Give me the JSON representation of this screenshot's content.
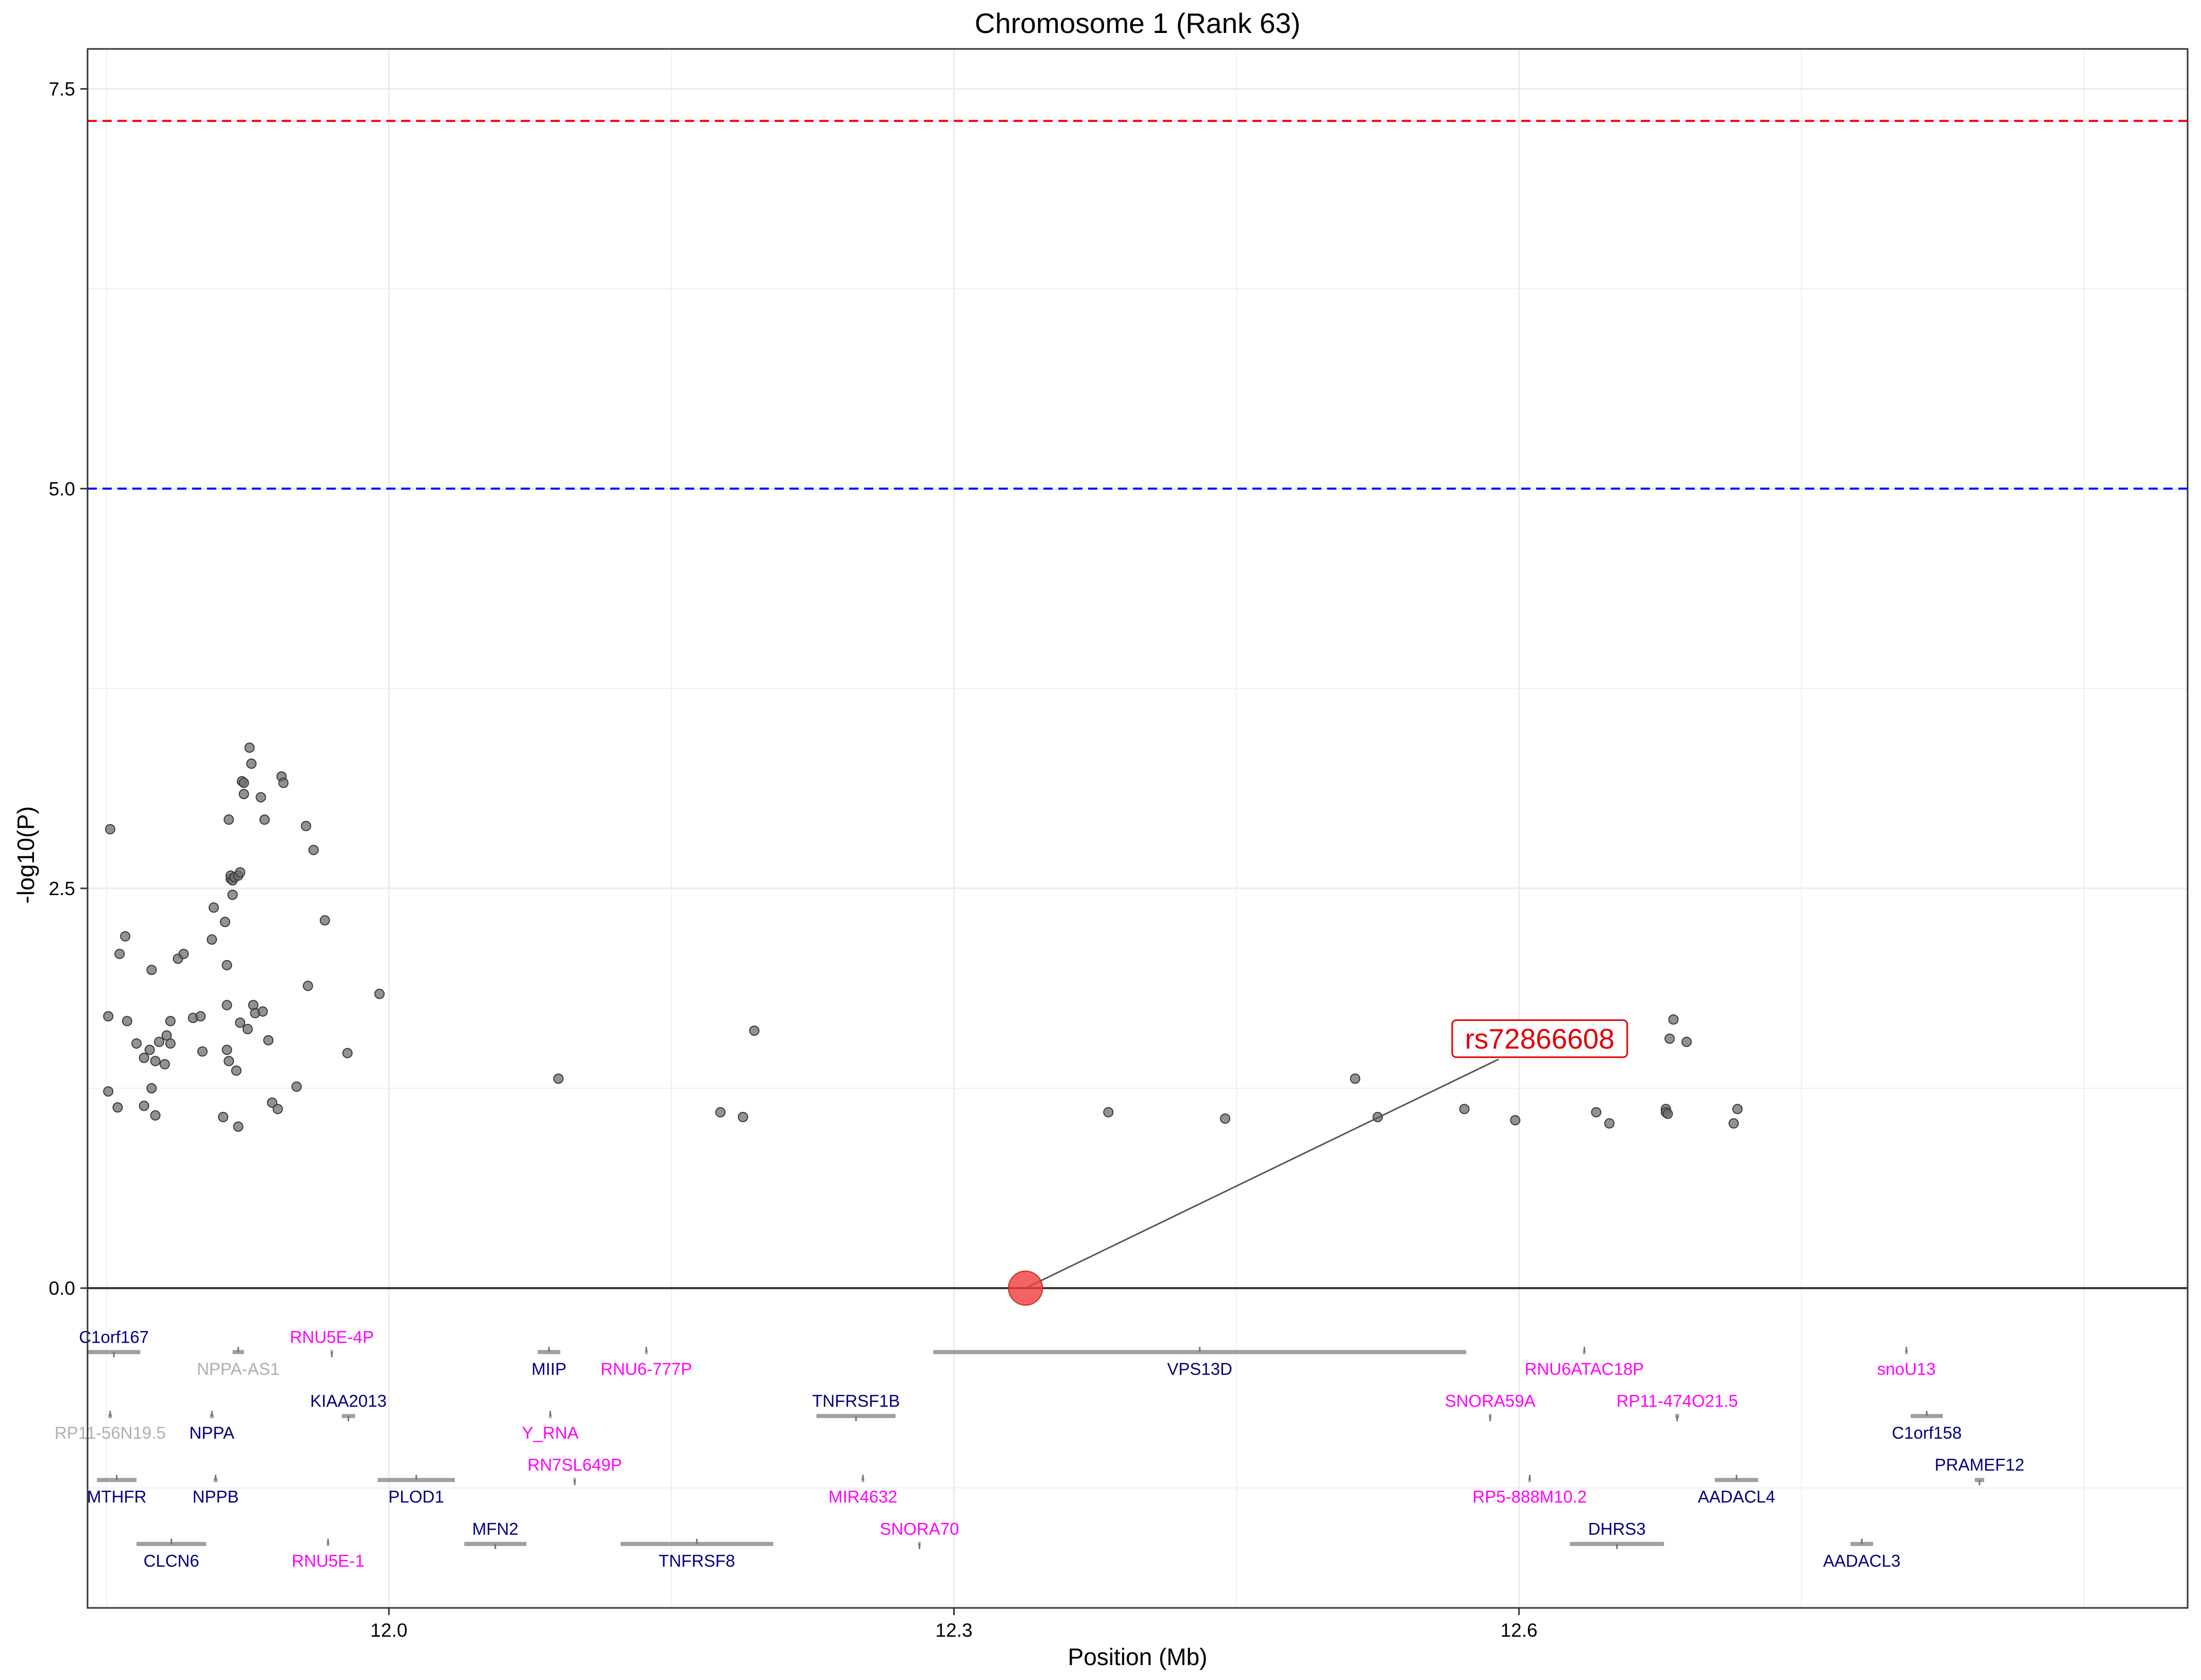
{
  "chart_data": {
    "type": "scatter",
    "title": "Chromosome 1 (Rank 63)",
    "xlabel": "Position (Mb)",
    "ylabel": "-log10(P)",
    "xlim": [
      11.84,
      12.955
    ],
    "ylim": [
      -2.0,
      7.75
    ],
    "x_ticks": [
      12.0,
      12.3,
      12.6
    ],
    "x_tick_labels": [
      "12.0",
      "12.3",
      "12.6"
    ],
    "y_ticks": [
      0.0,
      2.5,
      5.0,
      7.5
    ],
    "y_tick_labels": [
      "0.0",
      "2.5",
      "5.0",
      "7.5"
    ],
    "grid": true,
    "thresholds": [
      {
        "value": 7.3,
        "color": "#ff0000",
        "style": "dashed"
      },
      {
        "value": 5.0,
        "color": "#0000ff",
        "style": "dashed"
      }
    ],
    "lead_snp": {
      "label": "rs72866608",
      "x": 12.338,
      "y": 0.0,
      "label_x": 12.611,
      "label_y": 1.56,
      "color": "#f03c3c"
    },
    "points": [
      {
        "x": 11.851,
        "y": 1.7
      },
      {
        "x": 11.851,
        "y": 1.23
      },
      {
        "x": 11.852,
        "y": 2.87
      },
      {
        "x": 11.856,
        "y": 1.13
      },
      {
        "x": 11.857,
        "y": 2.09
      },
      {
        "x": 11.86,
        "y": 2.2
      },
      {
        "x": 11.861,
        "y": 1.67
      },
      {
        "x": 11.866,
        "y": 1.53
      },
      {
        "x": 11.87,
        "y": 1.14
      },
      {
        "x": 11.87,
        "y": 1.44
      },
      {
        "x": 11.873,
        "y": 1.49
      },
      {
        "x": 11.874,
        "y": 1.25
      },
      {
        "x": 11.874,
        "y": 1.99
      },
      {
        "x": 11.876,
        "y": 1.42
      },
      {
        "x": 11.876,
        "y": 1.08
      },
      {
        "x": 11.878,
        "y": 1.54
      },
      {
        "x": 11.881,
        "y": 1.4
      },
      {
        "x": 11.882,
        "y": 1.58
      },
      {
        "x": 11.884,
        "y": 1.53
      },
      {
        "x": 11.884,
        "y": 1.67
      },
      {
        "x": 11.888,
        "y": 2.06
      },
      {
        "x": 11.891,
        "y": 2.09
      },
      {
        "x": 11.896,
        "y": 1.69
      },
      {
        "x": 11.9,
        "y": 1.7
      },
      {
        "x": 11.901,
        "y": 1.48
      },
      {
        "x": 11.906,
        "y": 2.18
      },
      {
        "x": 11.907,
        "y": 2.38
      },
      {
        "x": 11.912,
        "y": 1.07
      },
      {
        "x": 11.913,
        "y": 2.29
      },
      {
        "x": 11.914,
        "y": 2.02
      },
      {
        "x": 11.914,
        "y": 1.77
      },
      {
        "x": 11.914,
        "y": 1.49
      },
      {
        "x": 11.915,
        "y": 1.42
      },
      {
        "x": 11.915,
        "y": 2.93
      },
      {
        "x": 11.916,
        "y": 2.56
      },
      {
        "x": 11.916,
        "y": 2.58
      },
      {
        "x": 11.917,
        "y": 2.55
      },
      {
        "x": 11.917,
        "y": 2.46
      },
      {
        "x": 11.918,
        "y": 2.57
      },
      {
        "x": 11.918,
        "y": 2.57
      },
      {
        "x": 11.919,
        "y": 1.36
      },
      {
        "x": 11.92,
        "y": 1.01
      },
      {
        "x": 11.92,
        "y": 2.58
      },
      {
        "x": 11.921,
        "y": 2.6
      },
      {
        "x": 11.921,
        "y": 1.66
      },
      {
        "x": 11.922,
        "y": 3.17
      },
      {
        "x": 11.923,
        "y": 3.16
      },
      {
        "x": 11.923,
        "y": 3.09
      },
      {
        "x": 11.925,
        "y": 1.62
      },
      {
        "x": 11.926,
        "y": 3.38
      },
      {
        "x": 11.927,
        "y": 3.28
      },
      {
        "x": 11.928,
        "y": 1.77
      },
      {
        "x": 11.929,
        "y": 1.72
      },
      {
        "x": 11.932,
        "y": 3.07
      },
      {
        "x": 11.933,
        "y": 1.73
      },
      {
        "x": 11.934,
        "y": 2.93
      },
      {
        "x": 11.936,
        "y": 1.55
      },
      {
        "x": 11.938,
        "y": 1.16
      },
      {
        "x": 11.941,
        "y": 1.12
      },
      {
        "x": 11.943,
        "y": 3.2
      },
      {
        "x": 11.944,
        "y": 3.16
      },
      {
        "x": 11.951,
        "y": 1.26
      },
      {
        "x": 11.956,
        "y": 2.89
      },
      {
        "x": 11.957,
        "y": 1.89
      },
      {
        "x": 11.96,
        "y": 2.74
      },
      {
        "x": 11.966,
        "y": 2.3
      },
      {
        "x": 11.978,
        "y": 1.47
      },
      {
        "x": 11.995,
        "y": 1.84
      },
      {
        "x": 12.09,
        "y": 1.31
      },
      {
        "x": 12.176,
        "y": 1.1
      },
      {
        "x": 12.188,
        "y": 1.07
      },
      {
        "x": 12.194,
        "y": 1.61
      },
      {
        "x": 12.382,
        "y": 1.1
      },
      {
        "x": 12.444,
        "y": 1.06
      },
      {
        "x": 12.513,
        "y": 1.31
      },
      {
        "x": 12.525,
        "y": 1.07
      },
      {
        "x": 12.571,
        "y": 1.12
      },
      {
        "x": 12.598,
        "y": 1.05
      },
      {
        "x": 12.641,
        "y": 1.1
      },
      {
        "x": 12.648,
        "y": 1.03
      },
      {
        "x": 12.678,
        "y": 1.12
      },
      {
        "x": 12.678,
        "y": 1.1
      },
      {
        "x": 12.679,
        "y": 1.09
      },
      {
        "x": 12.68,
        "y": 1.56
      },
      {
        "x": 12.682,
        "y": 1.68
      },
      {
        "x": 12.689,
        "y": 1.54
      },
      {
        "x": 12.714,
        "y": 1.03
      },
      {
        "x": 12.716,
        "y": 1.12
      }
    ],
    "genes": [
      {
        "name": "C1orf167",
        "start": 11.84,
        "end": 11.868,
        "y": -0.4,
        "label_pos": "above",
        "color": "#000080"
      },
      {
        "name": "NPPA-AS1",
        "start": 11.917,
        "end": 11.923,
        "y": -0.4,
        "label_pos": "below",
        "color": "#b0b0b0"
      },
      {
        "name": "RNU5E-4P",
        "start": 11.969,
        "end": 11.97,
        "y": -0.4,
        "label_pos": "above",
        "color": "#ff00ff"
      },
      {
        "name": "MIIP",
        "start": 12.079,
        "end": 12.091,
        "y": -0.4,
        "label_pos": "below",
        "color": "#000080"
      },
      {
        "name": "RNU6-777P",
        "start": 12.136,
        "end": 12.137,
        "y": -0.4,
        "label_pos": "below",
        "color": "#ff00ff"
      },
      {
        "name": "VPS13D",
        "start": 12.289,
        "end": 12.572,
        "y": -0.4,
        "label_pos": "below",
        "color": "#000080"
      },
      {
        "name": "RNU6ATAC18P",
        "start": 12.634,
        "end": 12.635,
        "y": -0.4,
        "label_pos": "below",
        "color": "#ff00ff"
      },
      {
        "name": "snoU13",
        "start": 12.805,
        "end": 12.806,
        "y": -0.4,
        "label_pos": "below",
        "color": "#ff00ff"
      },
      {
        "name": "RP11-56N19.5",
        "start": 11.851,
        "end": 11.853,
        "y": -0.8,
        "label_pos": "below",
        "color": "#b0b0b0"
      },
      {
        "name": "NPPA",
        "start": 11.905,
        "end": 11.907,
        "y": -0.8,
        "label_pos": "below",
        "color": "#000080"
      },
      {
        "name": "KIAA2013",
        "start": 11.975,
        "end": 11.982,
        "y": -0.8,
        "label_pos": "above",
        "color": "#000080"
      },
      {
        "name": "Y_RNA",
        "start": 12.085,
        "end": 12.086,
        "y": -0.8,
        "label_pos": "below",
        "color": "#ff00ff"
      },
      {
        "name": "TNFRSF1B",
        "start": 12.227,
        "end": 12.269,
        "y": -0.8,
        "label_pos": "above",
        "color": "#000080"
      },
      {
        "name": "SNORA59A",
        "start": 12.584,
        "end": 12.585,
        "y": -0.8,
        "label_pos": "above",
        "color": "#ff00ff"
      },
      {
        "name": "RP11-474O21.5",
        "start": 12.683,
        "end": 12.685,
        "y": -0.8,
        "label_pos": "above",
        "color": "#ff00ff"
      },
      {
        "name": "C1orf158",
        "start": 12.808,
        "end": 12.825,
        "y": -0.8,
        "label_pos": "below",
        "color": "#000080"
      },
      {
        "name": "MTHFR",
        "start": 11.845,
        "end": 11.866,
        "y": -1.2,
        "label_pos": "below",
        "color": "#000080"
      },
      {
        "name": "NPPB",
        "start": 11.907,
        "end": 11.909,
        "y": -1.2,
        "label_pos": "below",
        "color": "#000080"
      },
      {
        "name": "PLOD1",
        "start": 11.994,
        "end": 12.035,
        "y": -1.2,
        "label_pos": "below",
        "color": "#000080"
      },
      {
        "name": "RN7SL649P",
        "start": 12.098,
        "end": 12.099,
        "y": -1.2,
        "label_pos": "above",
        "color": "#ff00ff"
      },
      {
        "name": "MIR4632",
        "start": 12.251,
        "end": 12.252,
        "y": -1.2,
        "label_pos": "below",
        "color": "#ff00ff"
      },
      {
        "name": "RP5-888M10.2",
        "start": 12.605,
        "end": 12.606,
        "y": -1.2,
        "label_pos": "below",
        "color": "#ff00ff"
      },
      {
        "name": "AADACL4",
        "start": 12.704,
        "end": 12.727,
        "y": -1.2,
        "label_pos": "below",
        "color": "#000080"
      },
      {
        "name": "PRAMEF12",
        "start": 12.842,
        "end": 12.847,
        "y": -1.2,
        "label_pos": "above",
        "color": "#000080"
      },
      {
        "name": "CLCN6",
        "start": 11.866,
        "end": 11.903,
        "y": -1.6,
        "label_pos": "below",
        "color": "#000080"
      },
      {
        "name": "RNU5E-1",
        "start": 11.967,
        "end": 11.968,
        "y": -1.6,
        "label_pos": "below",
        "color": "#ff00ff"
      },
      {
        "name": "MFN2",
        "start": 12.04,
        "end": 12.073,
        "y": -1.6,
        "label_pos": "above",
        "color": "#000080"
      },
      {
        "name": "TNFRSF8",
        "start": 12.123,
        "end": 12.204,
        "y": -1.6,
        "label_pos": "below",
        "color": "#000080"
      },
      {
        "name": "SNORA70",
        "start": 12.281,
        "end": 12.282,
        "y": -1.6,
        "label_pos": "above",
        "color": "#ff00ff"
      },
      {
        "name": "DHRS3",
        "start": 12.627,
        "end": 12.677,
        "y": -1.6,
        "label_pos": "above",
        "color": "#000080"
      },
      {
        "name": "AADACL3",
        "start": 12.776,
        "end": 12.788,
        "y": -1.6,
        "label_pos": "below",
        "color": "#000080"
      }
    ]
  }
}
